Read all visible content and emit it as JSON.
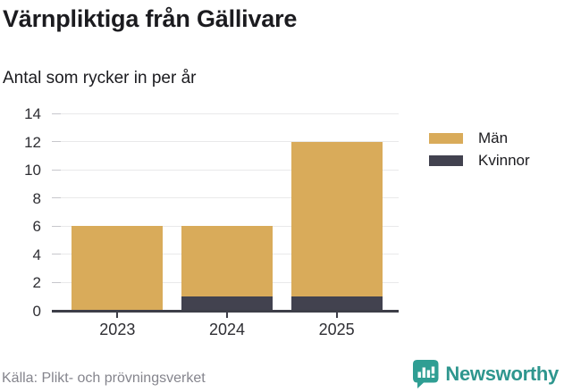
{
  "header": {
    "title": "Värnpliktiga från Gällivare",
    "subtitle": "Antal som rycker in per år"
  },
  "chart_data": {
    "type": "bar",
    "stacked": true,
    "title": "Värnpliktiga från Gällivare",
    "subtitle": "Antal som rycker in per år",
    "categories": [
      "2023",
      "2024",
      "2025"
    ],
    "series": [
      {
        "name": "Män",
        "color": "#d9ab5a",
        "values": [
          6,
          5,
          11
        ]
      },
      {
        "name": "Kvinnor",
        "color": "#42424f",
        "values": [
          0,
          1,
          1
        ]
      }
    ],
    "totals": [
      6,
      6,
      12
    ],
    "xlabel": "",
    "ylabel": "",
    "ylim": [
      0,
      14
    ],
    "yticks": [
      0,
      2,
      4,
      6,
      8,
      10,
      12,
      14
    ],
    "grid": true,
    "legend_position": "right",
    "colors": {
      "axis": "#3d3e48",
      "gridline": "#e9e9ea",
      "tick_label": "#2e2e33"
    }
  },
  "footer": {
    "source": "Källa: Plikt- och prövningsverket",
    "brand": "Newsworthy",
    "brand_color": "#2e968e"
  }
}
